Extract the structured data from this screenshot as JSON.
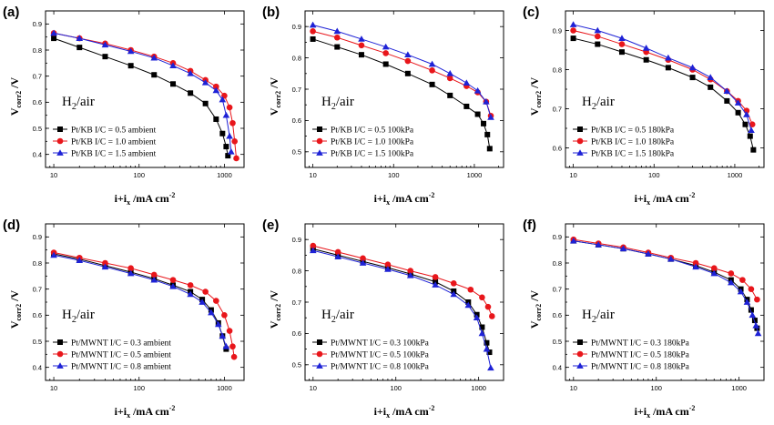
{
  "chart_data": [
    {
      "panel": "(a)",
      "type": "line",
      "xscale": "log",
      "xlim": [
        8,
        1700
      ],
      "ylim": [
        0.35,
        0.95
      ],
      "xticks": [
        10,
        100,
        1000
      ],
      "xtick_labels": [
        "10",
        "100",
        "1000"
      ],
      "yticks": [
        0.4,
        0.5,
        0.6,
        0.7,
        0.8,
        0.9
      ],
      "ytick_labels": [
        "0.4",
        "0.5",
        "0.6",
        "0.7",
        "0.8",
        "0.9"
      ],
      "xlabel_main": "i+i",
      "xlabel_sub": "x",
      "xlabel_tail": " /mA cm",
      "xlabel_sup": "-2",
      "ylabel_main": "V",
      "ylabel_sub": "corr2",
      "ylabel_tail": " /V",
      "annotation_main": "H",
      "annotation_sub": "2",
      "annotation_tail": "/air",
      "legend_position": "lower-left",
      "series": [
        {
          "name": "Pt/KB I/C = 0.5 ambient",
          "marker": "square",
          "color": "#000000",
          "x": [
            10,
            20,
            40,
            80,
            150,
            250,
            400,
            600,
            800,
            950,
            1050,
            1100
          ],
          "y": [
            0.845,
            0.81,
            0.775,
            0.74,
            0.705,
            0.67,
            0.635,
            0.595,
            0.535,
            0.48,
            0.43,
            0.395
          ]
        },
        {
          "name": "Pt/KB I/C = 1.0 ambient",
          "marker": "circle",
          "color": "#e8161b",
          "x": [
            10,
            20,
            40,
            80,
            150,
            250,
            400,
            600,
            800,
            1000,
            1150,
            1250,
            1320,
            1380
          ],
          "y": [
            0.865,
            0.845,
            0.825,
            0.8,
            0.775,
            0.75,
            0.72,
            0.685,
            0.66,
            0.625,
            0.58,
            0.52,
            0.45,
            0.385
          ]
        },
        {
          "name": "Pt/KB I/C = 1.5 ambient",
          "marker": "triangle",
          "color": "#1e22d6",
          "x": [
            10,
            20,
            40,
            80,
            150,
            250,
            400,
            600,
            800,
            950,
            1050,
            1150,
            1200
          ],
          "y": [
            0.865,
            0.845,
            0.82,
            0.795,
            0.77,
            0.74,
            0.71,
            0.675,
            0.645,
            0.61,
            0.55,
            0.47,
            0.41
          ]
        }
      ]
    },
    {
      "panel": "(b)",
      "type": "line",
      "xscale": "log",
      "xlim": [
        8,
        2300
      ],
      "ylim": [
        0.45,
        0.95
      ],
      "xticks": [
        10,
        100,
        1000
      ],
      "xtick_labels": [
        "10",
        "100",
        "1000"
      ],
      "yticks": [
        0.5,
        0.6,
        0.7,
        0.8,
        0.9
      ],
      "ytick_labels": [
        "0.5",
        "0.6",
        "0.7",
        "0.8",
        "0.9"
      ],
      "xlabel_main": "i+i",
      "xlabel_sub": "x",
      "xlabel_tail": " /mA cm",
      "xlabel_sup": "-2",
      "ylabel_main": "V",
      "ylabel_sub": "corr2",
      "ylabel_tail": " /V",
      "annotation_main": "H",
      "annotation_sub": "2",
      "annotation_tail": "/air",
      "legend_position": "lower-left",
      "series": [
        {
          "name": "Pt/KB I/C = 0.5 100kPa",
          "marker": "square",
          "color": "#000000",
          "x": [
            10,
            20,
            40,
            80,
            150,
            300,
            500,
            800,
            1100,
            1300,
            1450,
            1550
          ],
          "y": [
            0.86,
            0.835,
            0.81,
            0.78,
            0.75,
            0.715,
            0.68,
            0.645,
            0.62,
            0.59,
            0.555,
            0.51
          ]
        },
        {
          "name": "Pt/KB I/C = 1.0 100kPa",
          "marker": "circle",
          "color": "#e8161b",
          "x": [
            10,
            20,
            40,
            80,
            150,
            300,
            500,
            800,
            1100,
            1400,
            1600
          ],
          "y": [
            0.885,
            0.865,
            0.84,
            0.815,
            0.79,
            0.76,
            0.735,
            0.71,
            0.69,
            0.66,
            0.615
          ]
        },
        {
          "name": "Pt/KB I/C = 1.5 100kPa",
          "marker": "triangle",
          "color": "#1e22d6",
          "x": [
            10,
            20,
            40,
            80,
            150,
            300,
            500,
            800,
            1100,
            1400,
            1600
          ],
          "y": [
            0.905,
            0.885,
            0.86,
            0.835,
            0.81,
            0.78,
            0.75,
            0.72,
            0.695,
            0.66,
            0.61
          ]
        }
      ]
    },
    {
      "panel": "(c)",
      "type": "line",
      "xscale": "log",
      "xlim": [
        8,
        2300
      ],
      "ylim": [
        0.55,
        0.95
      ],
      "xticks": [
        10,
        100,
        1000
      ],
      "xtick_labels": [
        "10",
        "100",
        "1000"
      ],
      "yticks": [
        0.6,
        0.7,
        0.8,
        0.9
      ],
      "ytick_labels": [
        "0.6",
        "0.7",
        "0.8",
        "0.9"
      ],
      "xlabel_main": "i+i",
      "xlabel_sub": "x",
      "xlabel_tail": " /mA cm",
      "xlabel_sup": "-2",
      "ylabel_main": "V",
      "ylabel_sub": "corr2",
      "ylabel_tail": " /V",
      "annotation_main": "H",
      "annotation_sub": "2",
      "annotation_tail": "/air",
      "legend_position": "lower-left",
      "series": [
        {
          "name": "Pt/KB I/C = 0.5 180kPa",
          "marker": "square",
          "color": "#000000",
          "x": [
            10,
            20,
            40,
            80,
            150,
            300,
            500,
            800,
            1100,
            1350,
            1550,
            1700
          ],
          "y": [
            0.88,
            0.865,
            0.845,
            0.825,
            0.805,
            0.78,
            0.755,
            0.72,
            0.69,
            0.66,
            0.63,
            0.595
          ]
        },
        {
          "name": "Pt/KB I/C = 1.0 180kPa",
          "marker": "circle",
          "color": "#e8161b",
          "x": [
            10,
            20,
            40,
            80,
            150,
            300,
            500,
            800,
            1100,
            1400,
            1650
          ],
          "y": [
            0.9,
            0.885,
            0.865,
            0.845,
            0.825,
            0.8,
            0.775,
            0.745,
            0.72,
            0.695,
            0.66
          ]
        },
        {
          "name": "Pt/KB I/C = 1.5 180kPa",
          "marker": "triangle",
          "color": "#1e22d6",
          "x": [
            10,
            20,
            40,
            80,
            150,
            300,
            500,
            800,
            1100,
            1400,
            1600
          ],
          "y": [
            0.915,
            0.9,
            0.88,
            0.855,
            0.83,
            0.805,
            0.78,
            0.745,
            0.715,
            0.685,
            0.645
          ]
        }
      ]
    },
    {
      "panel": "(d)",
      "type": "line",
      "xscale": "log",
      "xlim": [
        8,
        1700
      ],
      "ylim": [
        0.35,
        0.95
      ],
      "xticks": [
        10,
        100,
        1000
      ],
      "xtick_labels": [
        "10",
        "100",
        "1000"
      ],
      "yticks": [
        0.4,
        0.5,
        0.6,
        0.7,
        0.8,
        0.9
      ],
      "ytick_labels": [
        "0.4",
        "0.5",
        "0.6",
        "0.7",
        "0.8",
        "0.9"
      ],
      "xlabel_main": "i+i",
      "xlabel_sub": "x",
      "xlabel_tail": " /mA cm",
      "xlabel_sup": "-2",
      "ylabel_main": "V",
      "ylabel_sub": "corr2",
      "ylabel_tail": " /V",
      "annotation_main": "H",
      "annotation_sub": "2",
      "annotation_tail": "/air",
      "legend_position": "lower-left",
      "series": [
        {
          "name": "Pt/MWNT I/C = 0.3 ambient",
          "marker": "square",
          "color": "#000000",
          "x": [
            10,
            20,
            40,
            80,
            150,
            250,
            400,
            550,
            700,
            850,
            950,
            1050
          ],
          "y": [
            0.835,
            0.815,
            0.79,
            0.765,
            0.74,
            0.715,
            0.69,
            0.66,
            0.62,
            0.57,
            0.52,
            0.47
          ]
        },
        {
          "name": "Pt/MWNT I/C = 0.5 ambient",
          "marker": "circle",
          "color": "#e8161b",
          "x": [
            10,
            20,
            40,
            80,
            150,
            250,
            400,
            600,
            800,
            1000,
            1150,
            1250,
            1300
          ],
          "y": [
            0.84,
            0.82,
            0.8,
            0.78,
            0.755,
            0.735,
            0.715,
            0.69,
            0.655,
            0.6,
            0.54,
            0.48,
            0.44
          ]
        },
        {
          "name": "Pt/MWNT I/C = 0.8 ambient",
          "marker": "triangle",
          "color": "#1e22d6",
          "x": [
            10,
            20,
            40,
            80,
            150,
            250,
            400,
            550,
            700,
            850,
            950,
            1050
          ],
          "y": [
            0.83,
            0.81,
            0.785,
            0.76,
            0.735,
            0.71,
            0.68,
            0.65,
            0.61,
            0.565,
            0.52,
            0.48
          ]
        }
      ]
    },
    {
      "panel": "(e)",
      "type": "line",
      "xscale": "log",
      "xlim": [
        8,
        2000
      ],
      "ylim": [
        0.45,
        0.95
      ],
      "xticks": [
        10,
        100,
        1000
      ],
      "xtick_labels": [
        "10",
        "100",
        "1000"
      ],
      "yticks": [
        0.5,
        0.6,
        0.7,
        0.8,
        0.9
      ],
      "ytick_labels": [
        "0.5",
        "0.6",
        "0.7",
        "0.8",
        "0.9"
      ],
      "xlabel_main": "i+i",
      "xlabel_sub": "x",
      "xlabel_tail": " /mA cm",
      "xlabel_sup": "-2",
      "ylabel_main": "V",
      "ylabel_sub": "corr2",
      "ylabel_tail": " /V",
      "annotation_main": "H",
      "annotation_sub": "2",
      "annotation_tail": "/air",
      "legend_position": "lower-left",
      "series": [
        {
          "name": "Pt/MWNT I/C = 0.3 100kPa",
          "marker": "square",
          "color": "#000000",
          "x": [
            10,
            20,
            40,
            80,
            150,
            300,
            500,
            750,
            950,
            1100,
            1250,
            1350
          ],
          "y": [
            0.87,
            0.85,
            0.83,
            0.81,
            0.79,
            0.765,
            0.735,
            0.7,
            0.66,
            0.62,
            0.57,
            0.54
          ]
        },
        {
          "name": "Pt/MWNT I/C = 0.5 100kPa",
          "marker": "circle",
          "color": "#e8161b",
          "x": [
            10,
            20,
            40,
            80,
            150,
            300,
            500,
            800,
            1100,
            1300,
            1450
          ],
          "y": [
            0.88,
            0.86,
            0.84,
            0.82,
            0.8,
            0.78,
            0.76,
            0.74,
            0.715,
            0.685,
            0.655
          ]
        },
        {
          "name": "Pt/MWNT I/C = 0.8 100kPa",
          "marker": "triangle",
          "color": "#1e22d6",
          "x": [
            10,
            20,
            40,
            80,
            150,
            300,
            500,
            750,
            950,
            1100,
            1250,
            1400
          ],
          "y": [
            0.865,
            0.845,
            0.825,
            0.805,
            0.785,
            0.755,
            0.725,
            0.69,
            0.65,
            0.6,
            0.55,
            0.49
          ]
        }
      ]
    },
    {
      "panel": "(f)",
      "type": "line",
      "xscale": "log",
      "xlim": [
        8,
        2000
      ],
      "ylim": [
        0.35,
        0.95
      ],
      "xticks": [
        10,
        100,
        1000
      ],
      "xtick_labels": [
        "10",
        "100",
        "1000"
      ],
      "yticks": [
        0.4,
        0.5,
        0.6,
        0.7,
        0.8,
        0.9
      ],
      "ytick_labels": [
        "0.4",
        "0.5",
        "0.6",
        "0.7",
        "0.8",
        "0.9"
      ],
      "xlabel_main": "i+i",
      "xlabel_sub": "x",
      "xlabel_tail": " /mA cm",
      "xlabel_sup": "-2",
      "ylabel_main": "V",
      "ylabel_sub": "corr2",
      "ylabel_tail": " /V",
      "annotation_main": "H",
      "annotation_sub": "2",
      "annotation_tail": "/air",
      "legend_position": "lower-left",
      "series": [
        {
          "name": "Pt/MWNT I/C = 0.3 180kPa",
          "marker": "square",
          "color": "#000000",
          "x": [
            10,
            20,
            40,
            80,
            150,
            300,
            500,
            800,
            1050,
            1250,
            1400,
            1550,
            1650
          ],
          "y": [
            0.885,
            0.87,
            0.855,
            0.835,
            0.815,
            0.79,
            0.765,
            0.735,
            0.7,
            0.66,
            0.62,
            0.58,
            0.55
          ]
        },
        {
          "name": "Pt/MWNT I/C = 0.5 180kPa",
          "marker": "circle",
          "color": "#e8161b",
          "x": [
            10,
            20,
            40,
            80,
            150,
            300,
            500,
            800,
            1100,
            1400,
            1650
          ],
          "y": [
            0.89,
            0.875,
            0.86,
            0.84,
            0.82,
            0.8,
            0.78,
            0.76,
            0.735,
            0.7,
            0.66
          ]
        },
        {
          "name": "Pt/MWNT I/C = 0.8 180kPa",
          "marker": "triangle",
          "color": "#1e22d6",
          "x": [
            10,
            20,
            40,
            80,
            150,
            300,
            500,
            800,
            1050,
            1250,
            1450,
            1600,
            1700
          ],
          "y": [
            0.885,
            0.87,
            0.855,
            0.835,
            0.815,
            0.785,
            0.76,
            0.725,
            0.69,
            0.65,
            0.6,
            0.56,
            0.53
          ]
        }
      ]
    }
  ]
}
